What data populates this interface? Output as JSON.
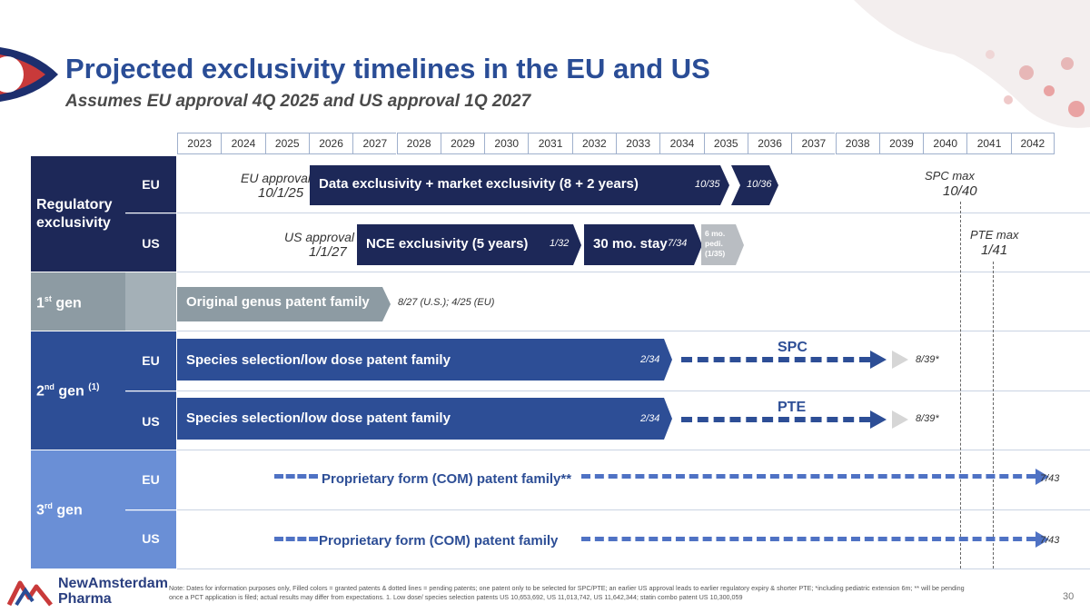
{
  "title": "Projected exclusivity timelines in the EU and US",
  "subtitle": "Assumes EU approval 4Q 2025 and US approval 1Q 2027",
  "years": [
    "2023",
    "2024",
    "2025",
    "2026",
    "2027",
    "2028",
    "2029",
    "2030",
    "2031",
    "2032",
    "2033",
    "2034",
    "2035",
    "2036",
    "2037",
    "2038",
    "2039",
    "2040",
    "2041",
    "2042"
  ],
  "sections": {
    "regulatory": "Regulatory exclusivity",
    "gen1": "1",
    "gen1_sup": "st",
    "gen1_suffix": " gen",
    "gen2": "2",
    "gen2_sup": "nd",
    "gen2_suffix": " gen",
    "gen2_note": "(1)",
    "gen3": "3",
    "gen3_sup": "rd",
    "gen3_suffix": " gen",
    "eu": "EU",
    "us": "US"
  },
  "reg_eu": {
    "approval_label": "EU approval",
    "approval_date": "10/1/25",
    "bar_label": "Data exclusivity + market exclusivity (8 + 2 years)",
    "end1": "10/35",
    "end2": "10/36",
    "max_label": "SPC max",
    "max_date": "10/40"
  },
  "reg_us": {
    "approval_label": "US approval",
    "approval_date": "1/1/27",
    "nce_label": "NCE exclusivity (5 years)",
    "nce_end": "1/32",
    "stay_label": "30 mo. stay",
    "stay_end": "7/34",
    "pedi_line1": "6 mo.",
    "pedi_line2": "pedi.",
    "pedi_line3": "(1/35)",
    "max_label": "PTE max",
    "max_date": "1/41"
  },
  "gen1": {
    "bar_label": "Original genus patent family",
    "expiry": "8/27 (U.S.); 4/25 (EU)"
  },
  "gen2_eu": {
    "bar_label": "Species selection/low dose patent family",
    "end": "2/34",
    "ext_label": "SPC",
    "ext_end": "8/39*"
  },
  "gen2_us": {
    "bar_label": "Species selection/low dose patent family",
    "end": "2/34",
    "ext_label": "PTE",
    "ext_end": "8/39*"
  },
  "gen3_eu": {
    "label": "Proprietary form (COM) patent family**",
    "end": "7/43"
  },
  "gen3_us": {
    "label": "Proprietary form (COM) patent family",
    "end": "7/43"
  },
  "footer": {
    "company_line1": "NewAmsterdam",
    "company_line2": "Pharma",
    "note": "Note: Dates for information purposes only, Filled colors = granted patents & dotted lines = pending patents; one patent only to be selected for SPC/PTE; an earlier US approval leads to earlier regulatory expiry & shorter PTE; *including pediatric extension 6m; ** will be pending once a PCT application is filed; actual results may differ from expectations. 1. Low dose/ species selection patents US 10,653,692, US 11,013,742, US 11,642,344; statin combo patent US 10,300,059",
    "page": "30"
  },
  "colors": {
    "navy": "#1d2858",
    "blue": "#2d4e96",
    "gray": "#8d9ba3",
    "light_blue": "#6a8fd6",
    "pedi_gray": "#b9bdc2"
  }
}
